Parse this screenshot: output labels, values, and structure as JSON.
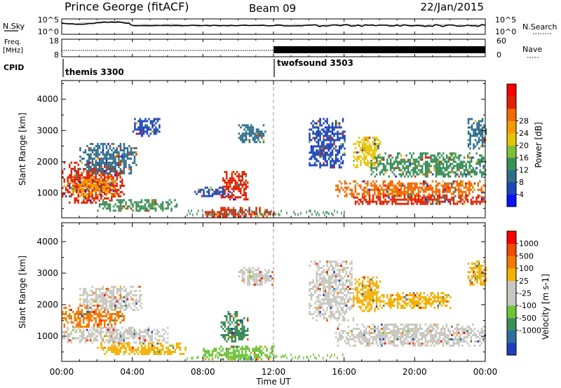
{
  "header": {
    "station": "Prince George (fitACF)",
    "beam": "Beam 09",
    "date": "22/Jan/2015"
  },
  "noise_panel": {
    "left_label": "N.Sky",
    "right_label": "N.Search",
    "left_ticks": [
      "10^5",
      "10^0"
    ],
    "right_ticks": [
      "10^5",
      "10^0"
    ]
  },
  "freq_panel": {
    "left_label_line1": "Freq.",
    "left_label_line2": "[MHz]",
    "left_ticks": [
      "18",
      "8"
    ],
    "right_label": "Nave",
    "right_ticks": [
      "60",
      "0"
    ]
  },
  "cpid_panel": {
    "label": "CPID",
    "modes": [
      {
        "name": "themis 3300",
        "start_hour": 0
      },
      {
        "name": "twofsound 3503",
        "start_hour": 12
      }
    ]
  },
  "x_axis": {
    "label": "Time UT",
    "ticks": [
      "00:00",
      "04:00",
      "08:00",
      "12:00",
      "16:00",
      "20:00",
      "00:00"
    ]
  },
  "chart_data": [
    {
      "type": "heatmap",
      "name": "power",
      "ylabel": "Slant Range [km]",
      "xlabel": "",
      "xlim": [
        0,
        24
      ],
      "ylim": [
        200,
        4600
      ],
      "yticks": [
        1000,
        2000,
        3000,
        4000
      ],
      "colorbar": {
        "label": "Power [dB]",
        "ticks": [
          "4",
          "8",
          "12",
          "16",
          "20",
          "24",
          "28"
        ],
        "colors": [
          "#0a12ff",
          "#1d47b8",
          "#2e6e8c",
          "#3c8f5a",
          "#7fbf3a",
          "#e6c400",
          "#f59a00",
          "#f26a00",
          "#e02200",
          "#ff0000"
        ]
      },
      "regions": [
        {
          "t0": 0.0,
          "t1": 3.5,
          "r0": 700,
          "r1": 2000,
          "color": "#e02200"
        },
        {
          "t0": 0.5,
          "t1": 3.0,
          "r0": 900,
          "r1": 1500,
          "color": "#f59a00"
        },
        {
          "t0": 1.0,
          "t1": 4.2,
          "r0": 1600,
          "r1": 2600,
          "color": "#2e6e8c"
        },
        {
          "t0": 2.0,
          "t1": 6.5,
          "r0": 450,
          "r1": 800,
          "color": "#3c8f5a"
        },
        {
          "t0": 4.0,
          "t1": 5.5,
          "r0": 2800,
          "r1": 3400,
          "color": "#1d47b8"
        },
        {
          "t0": 7.5,
          "t1": 9.5,
          "r0": 900,
          "r1": 1200,
          "color": "#1d47b8"
        },
        {
          "t0": 9.0,
          "t1": 10.5,
          "r0": 800,
          "r1": 1700,
          "color": "#e02200"
        },
        {
          "t0": 8.0,
          "t1": 12.0,
          "r0": 250,
          "r1": 550,
          "color": "#e02200"
        },
        {
          "t0": 10.0,
          "t1": 11.5,
          "r0": 2600,
          "r1": 3200,
          "color": "#2e6e8c"
        },
        {
          "t0": 14.0,
          "t1": 16.0,
          "r0": 1800,
          "r1": 3400,
          "color": "#1d47b8"
        },
        {
          "t0": 15.5,
          "t1": 24.0,
          "r0": 900,
          "r1": 1400,
          "color": "#f26a00"
        },
        {
          "t0": 16.5,
          "t1": 24.0,
          "r0": 650,
          "r1": 950,
          "color": "#e02200"
        },
        {
          "t0": 16.5,
          "t1": 18.0,
          "r0": 1800,
          "r1": 2800,
          "color": "#e6c400"
        },
        {
          "t0": 17.5,
          "t1": 24.0,
          "r0": 1500,
          "r1": 2300,
          "color": "#3c8f5a"
        },
        {
          "t0": 23.0,
          "t1": 24.0,
          "r0": 2400,
          "r1": 3400,
          "color": "#2e6e8c"
        }
      ]
    },
    {
      "type": "heatmap",
      "name": "velocity",
      "ylabel": "Slant Range [km]",
      "xlabel": "Time UT",
      "xlim": [
        0,
        24
      ],
      "ylim": [
        200,
        4600
      ],
      "yticks": [
        1000,
        2000,
        3000,
        4000
      ],
      "colorbar": {
        "label": "Velocity [m s-1]",
        "ticks": [
          "1000",
          "500",
          "100",
          "25",
          "-25",
          "-100",
          "-500",
          "-1000"
        ],
        "colors": [
          "#1f3fbf",
          "#2e6ea0",
          "#3c8f5a",
          "#6fc23a",
          "#c8c8c0",
          "#c8c8c0",
          "#f5b000",
          "#f57a00",
          "#f24a00",
          "#ff0000"
        ]
      },
      "regions": [
        {
          "t0": 0.0,
          "t1": 3.5,
          "r0": 1300,
          "r1": 2000,
          "color": "#f57a00"
        },
        {
          "t0": 0.0,
          "t1": 6.0,
          "r0": 800,
          "r1": 1300,
          "color": "#c8c8c0"
        },
        {
          "t0": 2.0,
          "t1": 7.0,
          "r0": 400,
          "r1": 800,
          "color": "#f5b000"
        },
        {
          "t0": 1.0,
          "t1": 4.5,
          "r0": 1800,
          "r1": 2600,
          "color": "#c8c8c0"
        },
        {
          "t0": 8.0,
          "t1": 12.0,
          "r0": 250,
          "r1": 700,
          "color": "#6fc23a"
        },
        {
          "t0": 9.0,
          "t1": 10.5,
          "r0": 800,
          "r1": 1800,
          "color": "#3c8f5a"
        },
        {
          "t0": 10.0,
          "t1": 12.0,
          "r0": 2600,
          "r1": 3200,
          "color": "#c8c8c0"
        },
        {
          "t0": 14.0,
          "t1": 16.5,
          "r0": 1500,
          "r1": 3400,
          "color": "#c8c8c0"
        },
        {
          "t0": 15.5,
          "t1": 24.0,
          "r0": 700,
          "r1": 1400,
          "color": "#c8c8c0"
        },
        {
          "t0": 16.5,
          "t1": 18.0,
          "r0": 1800,
          "r1": 2900,
          "color": "#f5b000"
        },
        {
          "t0": 18.0,
          "t1": 22.0,
          "r0": 1900,
          "r1": 2400,
          "color": "#f5b000"
        },
        {
          "t0": 23.0,
          "t1": 24.0,
          "r0": 2600,
          "r1": 3400,
          "color": "#f5b000"
        }
      ]
    }
  ]
}
